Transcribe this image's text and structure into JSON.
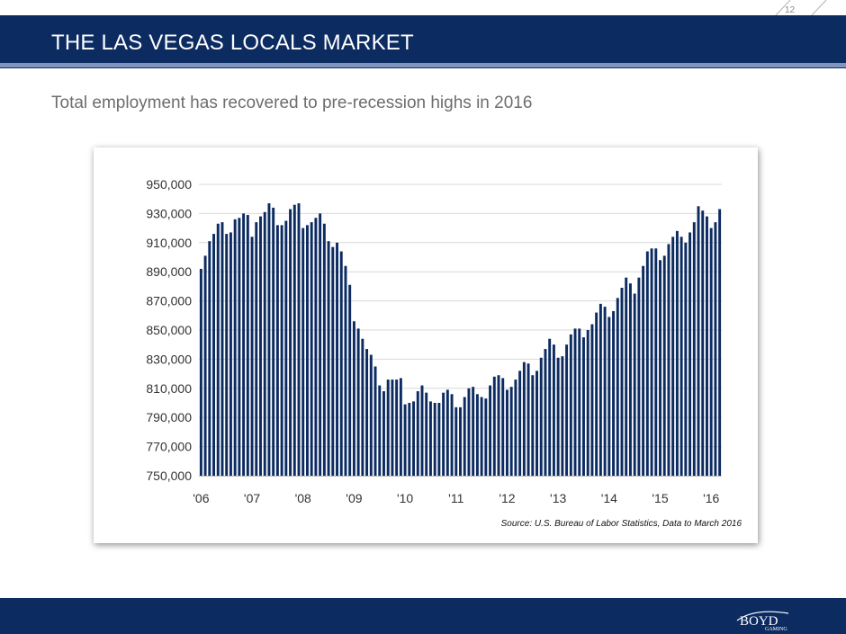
{
  "page_number": "12",
  "header": {
    "title": "THE LAS VEGAS LOCALS MARKET"
  },
  "subtitle": "Total employment has recovered to pre-recession highs in 2016",
  "source": "Source: U.S. Bureau of Labor Statistics, Data to March 2016",
  "logo": {
    "word": "BOYD",
    "tagline": "GAMING"
  },
  "colors": {
    "brand": "#0c2b61",
    "accent": "#7f95c0",
    "bar": "#0c2b61",
    "grid": "#d9d9d9"
  },
  "chart_data": {
    "type": "bar",
    "title": "",
    "xlabel": "",
    "ylabel": "",
    "ylim": [
      750000,
      950000
    ],
    "y_ticks": [
      "750,000",
      "770,000",
      "790,000",
      "810,000",
      "830,000",
      "850,000",
      "870,000",
      "890,000",
      "910,000",
      "930,000",
      "950,000"
    ],
    "x_tick_labels": [
      "'06",
      "'07",
      "'08",
      "'09",
      "'10",
      "'11",
      "'12",
      "'13",
      "'14",
      "'15",
      "'16"
    ],
    "grid": "horizontal",
    "x": [
      "2006-01",
      "2006-02",
      "2006-03",
      "2006-04",
      "2006-05",
      "2006-06",
      "2006-07",
      "2006-08",
      "2006-09",
      "2006-10",
      "2006-11",
      "2006-12",
      "2007-01",
      "2007-02",
      "2007-03",
      "2007-04",
      "2007-05",
      "2007-06",
      "2007-07",
      "2007-08",
      "2007-09",
      "2007-10",
      "2007-11",
      "2007-12",
      "2008-01",
      "2008-02",
      "2008-03",
      "2008-04",
      "2008-05",
      "2008-06",
      "2008-07",
      "2008-08",
      "2008-09",
      "2008-10",
      "2008-11",
      "2008-12",
      "2009-01",
      "2009-02",
      "2009-03",
      "2009-04",
      "2009-05",
      "2009-06",
      "2009-07",
      "2009-08",
      "2009-09",
      "2009-10",
      "2009-11",
      "2009-12",
      "2010-01",
      "2010-02",
      "2010-03",
      "2010-04",
      "2010-05",
      "2010-06",
      "2010-07",
      "2010-08",
      "2010-09",
      "2010-10",
      "2010-11",
      "2010-12",
      "2011-01",
      "2011-02",
      "2011-03",
      "2011-04",
      "2011-05",
      "2011-06",
      "2011-07",
      "2011-08",
      "2011-09",
      "2011-10",
      "2011-11",
      "2011-12",
      "2012-01",
      "2012-02",
      "2012-03",
      "2012-04",
      "2012-05",
      "2012-06",
      "2012-07",
      "2012-08",
      "2012-09",
      "2012-10",
      "2012-11",
      "2012-12",
      "2013-01",
      "2013-02",
      "2013-03",
      "2013-04",
      "2013-05",
      "2013-06",
      "2013-07",
      "2013-08",
      "2013-09",
      "2013-10",
      "2013-11",
      "2013-12",
      "2014-01",
      "2014-02",
      "2014-03",
      "2014-04",
      "2014-05",
      "2014-06",
      "2014-07",
      "2014-08",
      "2014-09",
      "2014-10",
      "2014-11",
      "2014-12",
      "2015-01",
      "2015-02",
      "2015-03",
      "2015-04",
      "2015-05",
      "2015-06",
      "2015-07",
      "2015-08",
      "2015-09",
      "2015-10",
      "2015-11",
      "2015-12",
      "2016-01",
      "2016-02",
      "2016-03"
    ],
    "values": [
      892000,
      901000,
      911000,
      916000,
      923000,
      924000,
      916000,
      917000,
      926000,
      927000,
      930000,
      929000,
      914000,
      924000,
      928000,
      931000,
      937000,
      934000,
      922000,
      922000,
      925000,
      933000,
      936000,
      937000,
      920000,
      922000,
      924000,
      927000,
      930000,
      923000,
      911000,
      907000,
      910000,
      904000,
      894000,
      881000,
      856000,
      851000,
      844000,
      837000,
      833000,
      825000,
      812000,
      808000,
      816000,
      816000,
      816000,
      817000,
      799000,
      800000,
      801000,
      808000,
      812000,
      807000,
      801000,
      800000,
      800000,
      807000,
      809000,
      806000,
      797000,
      797000,
      804000,
      810000,
      811000,
      806000,
      804000,
      803000,
      812000,
      818000,
      819000,
      817000,
      809000,
      811000,
      816000,
      822000,
      828000,
      827000,
      819000,
      822000,
      831000,
      837000,
      844000,
      840000,
      831000,
      832000,
      840000,
      847000,
      851000,
      851000,
      845000,
      850000,
      854000,
      862000,
      868000,
      866000,
      859000,
      863000,
      872000,
      879000,
      886000,
      882000,
      875000,
      886000,
      894000,
      904000,
      906000,
      906000,
      898000,
      901000,
      909000,
      914000,
      918000,
      914000,
      910000,
      917000,
      924000,
      935000,
      932000,
      928000,
      920000,
      924000,
      933000
    ]
  }
}
